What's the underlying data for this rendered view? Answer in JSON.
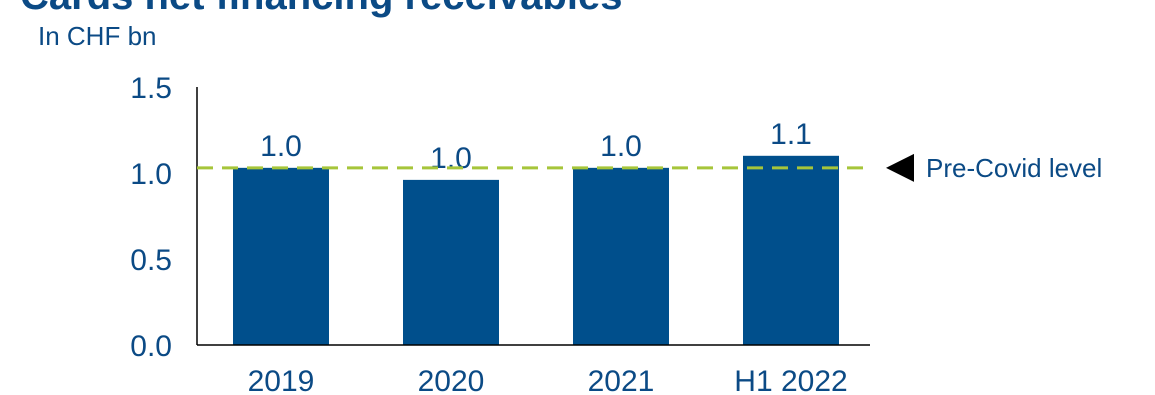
{
  "title": "Cards net financing receivables",
  "subtitle": "In CHF bn",
  "colors": {
    "bar": "#004f8c",
    "text": "#0b4a85",
    "reference_line": "#a6c53a",
    "axis": "#000000"
  },
  "chart_data": {
    "type": "bar",
    "categories": [
      "2019",
      "2020",
      "2021",
      "H1 2022"
    ],
    "values": [
      1.03,
      0.96,
      1.03,
      1.1
    ],
    "data_labels": [
      "1.0",
      "1.0",
      "1.0",
      "1.1"
    ],
    "ylim": [
      0,
      1.5
    ],
    "yticks": [
      0.0,
      0.5,
      1.0,
      1.5
    ],
    "ytick_labels": [
      "0.0",
      "0.5",
      "1.0",
      "1.5"
    ],
    "xlabel": "",
    "ylabel": "",
    "grid": false,
    "reference_line": {
      "value": 1.03,
      "label": "Pre-Covid level",
      "style": "dashed"
    }
  }
}
